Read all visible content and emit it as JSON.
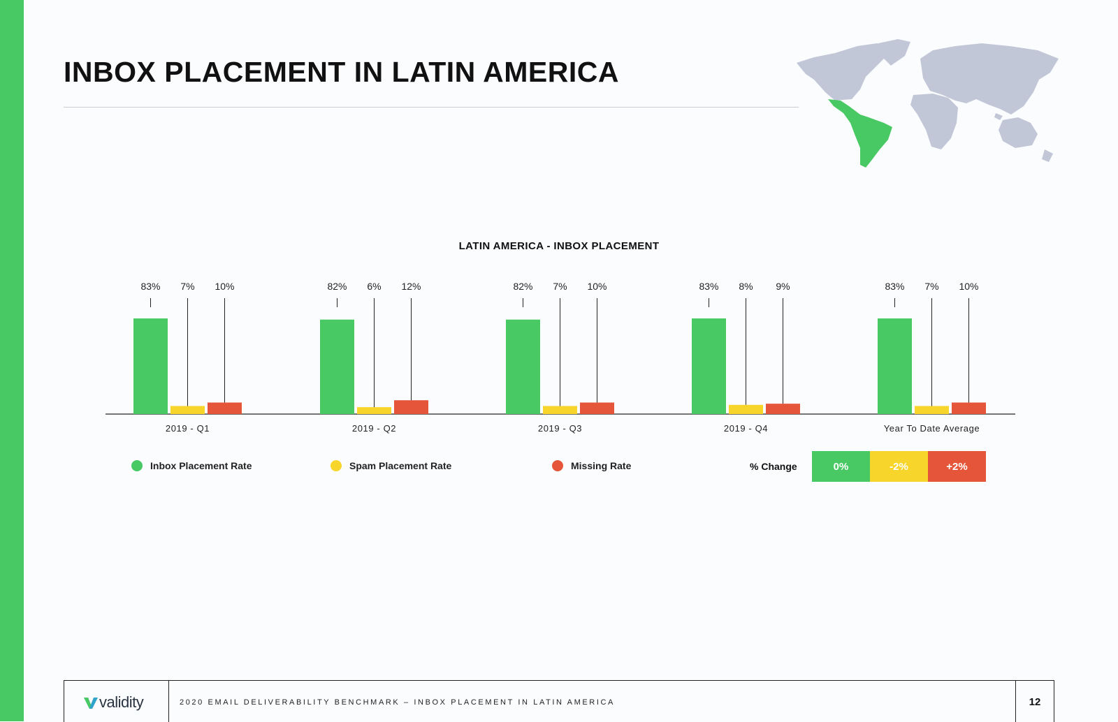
{
  "page": {
    "title": "INBOX PLACEMENT IN LATIN AMERICA"
  },
  "colors": {
    "accent": "#48c963",
    "inbox": "#48c963",
    "spam": "#f8d52a",
    "missing": "#e5553a",
    "map_land": "#c2c7d8",
    "map_highlight": "#48c963"
  },
  "chart_data": {
    "type": "bar",
    "title": "LATIN AMERICA - INBOX PLACEMENT",
    "categories": [
      "2019 - Q1",
      "2019 - Q2",
      "2019 - Q3",
      "2019 - Q4",
      "Year To Date Average"
    ],
    "series": [
      {
        "name": "Inbox Placement Rate",
        "values": [
          83,
          82,
          82,
          83,
          83
        ],
        "labels": [
          "83%",
          "82%",
          "82%",
          "83%",
          "83%"
        ]
      },
      {
        "name": "Spam Placement Rate",
        "values": [
          7,
          6,
          7,
          8,
          7
        ],
        "labels": [
          "7%",
          "6%",
          "7%",
          "8%",
          "7%"
        ]
      },
      {
        "name": "Missing Rate",
        "values": [
          10,
          12,
          10,
          9,
          10
        ],
        "labels": [
          "10%",
          "12%",
          "10%",
          "9%",
          "10%"
        ]
      }
    ],
    "ylim": [
      0,
      100
    ],
    "xlabel": "",
    "ylabel": "",
    "legend": [
      "Inbox Placement Rate",
      "Spam Placement Rate",
      "Missing Rate"
    ]
  },
  "change": {
    "label": "% Change",
    "values": [
      "0%",
      "-2%",
      "+2%"
    ]
  },
  "footer": {
    "logo_text": "validity",
    "text": "2020 EMAIL DELIVERABILITY BENCHMARK – INBOX PLACEMENT IN LATIN AMERICA",
    "page_number": "12"
  }
}
